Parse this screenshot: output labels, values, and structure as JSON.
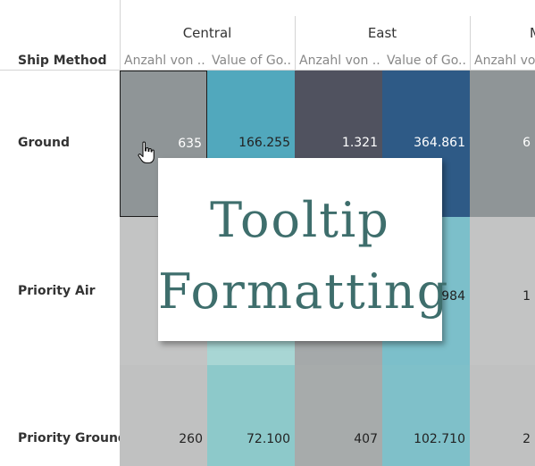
{
  "header": {
    "regions": [
      "Central",
      "East",
      "M"
    ],
    "row_dimension_label": "Ship Method",
    "measures": [
      "Anzahl von ..",
      "Value of Go..",
      "Anzahl von ..",
      "Value of Go..",
      "Anzahl von .."
    ]
  },
  "rows": [
    {
      "label": "Ground",
      "cells": [
        "635",
        "166.255",
        "1.321",
        "364.861",
        "6"
      ]
    },
    {
      "label": "Priority Air",
      "cells": [
        "",
        "",
        "",
        "984",
        "1"
      ]
    },
    {
      "label": "Priority Ground",
      "cells": [
        "260",
        "72.100",
        "407",
        "102.710",
        "2"
      ]
    }
  ],
  "cell_colors": [
    [
      "#8f9597",
      "#51a8bd",
      "#50525f",
      "#2e5a86",
      "#8f9597"
    ],
    [
      "#c3c4c4",
      "#a8d6d4",
      "#a5a9aa",
      "#7cbfca",
      "#c3c4c4"
    ],
    [
      "#c0c1c1",
      "#8dc9ca",
      "#a7abab",
      "#7fc0c9",
      "#c0c1c1"
    ]
  ],
  "cell_text_colors": [
    [
      "#ffffff",
      "#222222",
      "#ffffff",
      "#ffffff",
      "#ffffff"
    ],
    [
      "#222222",
      "#222222",
      "#222222",
      "#222222",
      "#222222"
    ],
    [
      "#222222",
      "#222222",
      "#222222",
      "#222222",
      "#222222"
    ]
  ],
  "tooltip": {
    "line1": "Tooltip",
    "line2": "Formatting",
    "text_color": "#3e6e6c"
  },
  "cursor_icon": "hand-pointer-icon"
}
